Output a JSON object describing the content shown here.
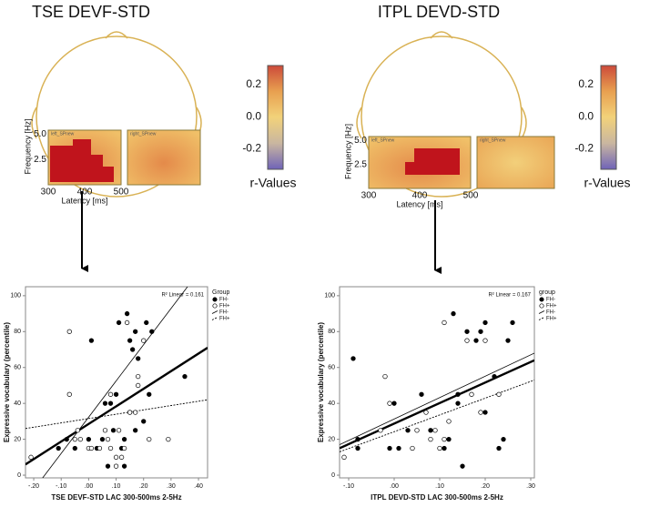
{
  "topographies": [
    {
      "title": "TSE DEVF-STD",
      "panels": [
        "left_SPnew",
        "right_SPnew"
      ],
      "ylabel": "Frequency [Hz]",
      "xlabel": "Latency [ms]",
      "xlim": [
        300,
        500
      ],
      "xticks": [
        300,
        400,
        500
      ],
      "ylim": [
        0,
        5.4
      ],
      "yticks": [
        {
          "value": 5,
          "label": "5.0"
        },
        2.5
      ],
      "colorbar": {
        "clim": [
          -0.33,
          0.32
        ],
        "ticks": [
          0.2,
          {
            "value": 0,
            "label": "0.0"
          },
          -0.2
        ],
        "label": "r-Values"
      }
    },
    {
      "title": "ITPL DEVD-STD",
      "panels": [
        "left_SPnew",
        "right_SPnew"
      ],
      "ylabel": "Frequency [Hz]",
      "xlabel": "Latency [ms]",
      "xlim": [
        300,
        500
      ],
      "xticks": [
        300,
        400,
        500
      ],
      "ylim": [
        0,
        5.4
      ],
      "yticks": [
        {
          "value": 5,
          "label": "5.0"
        },
        2.5
      ],
      "colorbar": {
        "clim": [
          -0.33,
          0.32
        ],
        "ticks": [
          0.2,
          {
            "value": 0,
            "label": "0.0"
          },
          -0.2
        ],
        "label": "r-Values"
      }
    }
  ],
  "chart_data": [
    {
      "type": "scatter",
      "xlabel": "TSE DEVF-STD LAC 300-500ms 2-5Hz",
      "ylabel": "Expressive vocabulary (percentile)",
      "annotation": "R² Linear = 0.161",
      "legend_title": "Group",
      "xlim": [
        -0.23,
        0.433
      ],
      "xticks": [
        {
          "value": -0.2,
          "label": "-.20"
        },
        {
          "value": -0.1,
          "label": "-.10"
        },
        {
          "value": 0,
          "label": ".00"
        },
        {
          "value": 0.1,
          "label": ".10"
        },
        {
          "value": 0.2,
          "label": ".20"
        },
        {
          "value": 0.3,
          "label": ".30"
        },
        {
          "value": 0.4,
          "label": ".40"
        }
      ],
      "ylim": [
        -1.5,
        105
      ],
      "yticks": [
        0,
        20,
        40,
        60,
        80,
        100
      ],
      "series": [
        {
          "name": "FH-",
          "marker": "filled",
          "color": "#000000",
          "x": [
            -0.11,
            -0.08,
            -0.05,
            0.0,
            0.01,
            0.03,
            0.05,
            0.06,
            0.07,
            0.08,
            0.09,
            0.1,
            0.11,
            0.12,
            0.13,
            0.13,
            0.14,
            0.15,
            0.15,
            0.16,
            0.17,
            0.17,
            0.18,
            0.2,
            0.21,
            0.22,
            0.23,
            0.35
          ],
          "values": [
            15,
            20,
            15,
            20,
            75,
            15,
            20,
            40,
            5,
            40,
            25,
            45,
            85,
            15,
            20,
            5,
            90,
            35,
            75,
            70,
            80,
            25,
            65,
            30,
            85,
            45,
            80,
            55
          ]
        },
        {
          "name": "FH+",
          "marker": "open",
          "color": "#000000",
          "x": [
            -0.21,
            -0.07,
            -0.07,
            -0.05,
            -0.04,
            -0.03,
            0.0,
            0.01,
            0.04,
            0.06,
            0.07,
            0.08,
            0.1,
            0.1,
            0.11,
            0.12,
            0.13,
            0.14,
            0.15,
            0.17,
            0.18,
            0.18,
            0.2,
            0.22,
            0.29,
            0.08
          ],
          "values": [
            10,
            45,
            80,
            20,
            25,
            20,
            15,
            15,
            15,
            25,
            20,
            15,
            5,
            10,
            25,
            10,
            15,
            85,
            35,
            35,
            55,
            50,
            75,
            20,
            20,
            45
          ]
        }
      ],
      "fit_lines": [
        {
          "style": "bold",
          "x": [
            -0.23,
            0.433
          ],
          "y": [
            6,
            71
          ]
        },
        {
          "name": "FH-",
          "style": "solid",
          "x": [
            -0.17,
            0.36
          ],
          "y": [
            -2,
            105
          ]
        },
        {
          "name": "FH+",
          "style": "dotted",
          "x": [
            -0.23,
            0.433
          ],
          "y": [
            26,
            42
          ]
        }
      ]
    },
    {
      "type": "scatter",
      "xlabel": "ITPL DEVD-STD LAC 300-500ms 2-5Hz",
      "ylabel": "Expressive vocabulary (percentile)",
      "annotation": "R² Linear = 0.167",
      "legend_title": "group",
      "xlim": [
        -0.12,
        0.308
      ],
      "xticks": [
        {
          "value": -0.1,
          "label": "-.10"
        },
        {
          "value": 0,
          "label": ".00"
        },
        {
          "value": 0.1,
          "label": ".10"
        },
        {
          "value": 0.2,
          "label": ".20"
        },
        {
          "value": 0.3,
          "label": ".30"
        }
      ],
      "ylim": [
        -1.5,
        105
      ],
      "yticks": [
        0,
        20,
        40,
        60,
        80,
        100
      ],
      "series": [
        {
          "name": "FH-",
          "marker": "filled",
          "color": "#000000",
          "x": [
            -0.09,
            -0.08,
            -0.08,
            -0.01,
            0.0,
            0.01,
            0.03,
            0.06,
            0.08,
            0.11,
            0.12,
            0.13,
            0.14,
            0.15,
            0.16,
            0.18,
            0.19,
            0.2,
            0.2,
            0.22,
            0.23,
            0.24,
            0.25,
            0.26,
            0.14
          ],
          "values": [
            65,
            15,
            20,
            15,
            40,
            15,
            25,
            45,
            25,
            15,
            20,
            90,
            40,
            5,
            80,
            75,
            80,
            85,
            35,
            55,
            15,
            20,
            75,
            85,
            45
          ]
        },
        {
          "name": "FH+",
          "marker": "open",
          "color": "#000000",
          "x": [
            -0.11,
            -0.03,
            -0.02,
            -0.01,
            0.04,
            0.05,
            0.07,
            0.08,
            0.09,
            0.1,
            0.11,
            0.11,
            0.16,
            0.17,
            0.19,
            0.2,
            0.23,
            0.12
          ],
          "values": [
            10,
            25,
            55,
            40,
            15,
            25,
            35,
            20,
            25,
            15,
            20,
            85,
            75,
            45,
            35,
            75,
            45,
            30
          ]
        }
      ],
      "fit_lines": [
        {
          "style": "bold",
          "x": [
            -0.12,
            0.308
          ],
          "y": [
            15,
            64
          ]
        },
        {
          "name": "FH-",
          "style": "solid",
          "x": [
            -0.12,
            0.308
          ],
          "y": [
            17,
            68
          ]
        },
        {
          "name": "FH+",
          "style": "dotted",
          "x": [
            -0.12,
            0.308
          ],
          "y": [
            13,
            53
          ]
        }
      ]
    }
  ]
}
